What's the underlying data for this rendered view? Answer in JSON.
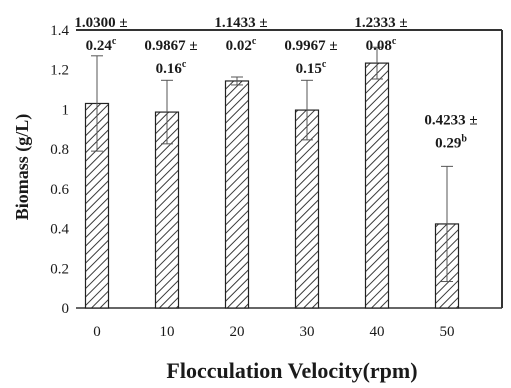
{
  "chart_data": {
    "type": "bar",
    "title": "",
    "xlabel": "Flocculation Velocity(rpm)",
    "ylabel": "Biomass (g/L)",
    "categories": [
      "0",
      "10",
      "20",
      "30",
      "40",
      "50"
    ],
    "ylim": [
      0,
      1.4
    ],
    "yticks": [
      "0",
      "0.2",
      "0.4",
      "0.6",
      "0.8",
      "1",
      "1.2",
      "1.4"
    ],
    "grid": false,
    "legend": "none",
    "bar_pattern": "diagonal-hatch",
    "series": [
      {
        "values": [
          1.03,
          0.9867,
          1.1433,
          0.9967,
          1.2333,
          0.4233
        ],
        "errors": [
          0.24,
          0.16,
          0.02,
          0.15,
          0.08,
          0.29
        ]
      }
    ],
    "data_labels": [
      {
        "value_text": "1.0300 ±",
        "error_text": "0.24",
        "letter": "c"
      },
      {
        "value_text": "0.9867 ±",
        "error_text": "0.16",
        "letter": "c"
      },
      {
        "value_text": "1.1433 ±",
        "error_text": "0.02",
        "letter": "c"
      },
      {
        "value_text": "0.9967 ±",
        "error_text": "0.15",
        "letter": "c"
      },
      {
        "value_text": "1.2333 ±",
        "error_text": "0.08",
        "letter": "c"
      },
      {
        "value_text": "0.4233 ±",
        "error_text": "0.29",
        "letter": "b"
      }
    ]
  }
}
